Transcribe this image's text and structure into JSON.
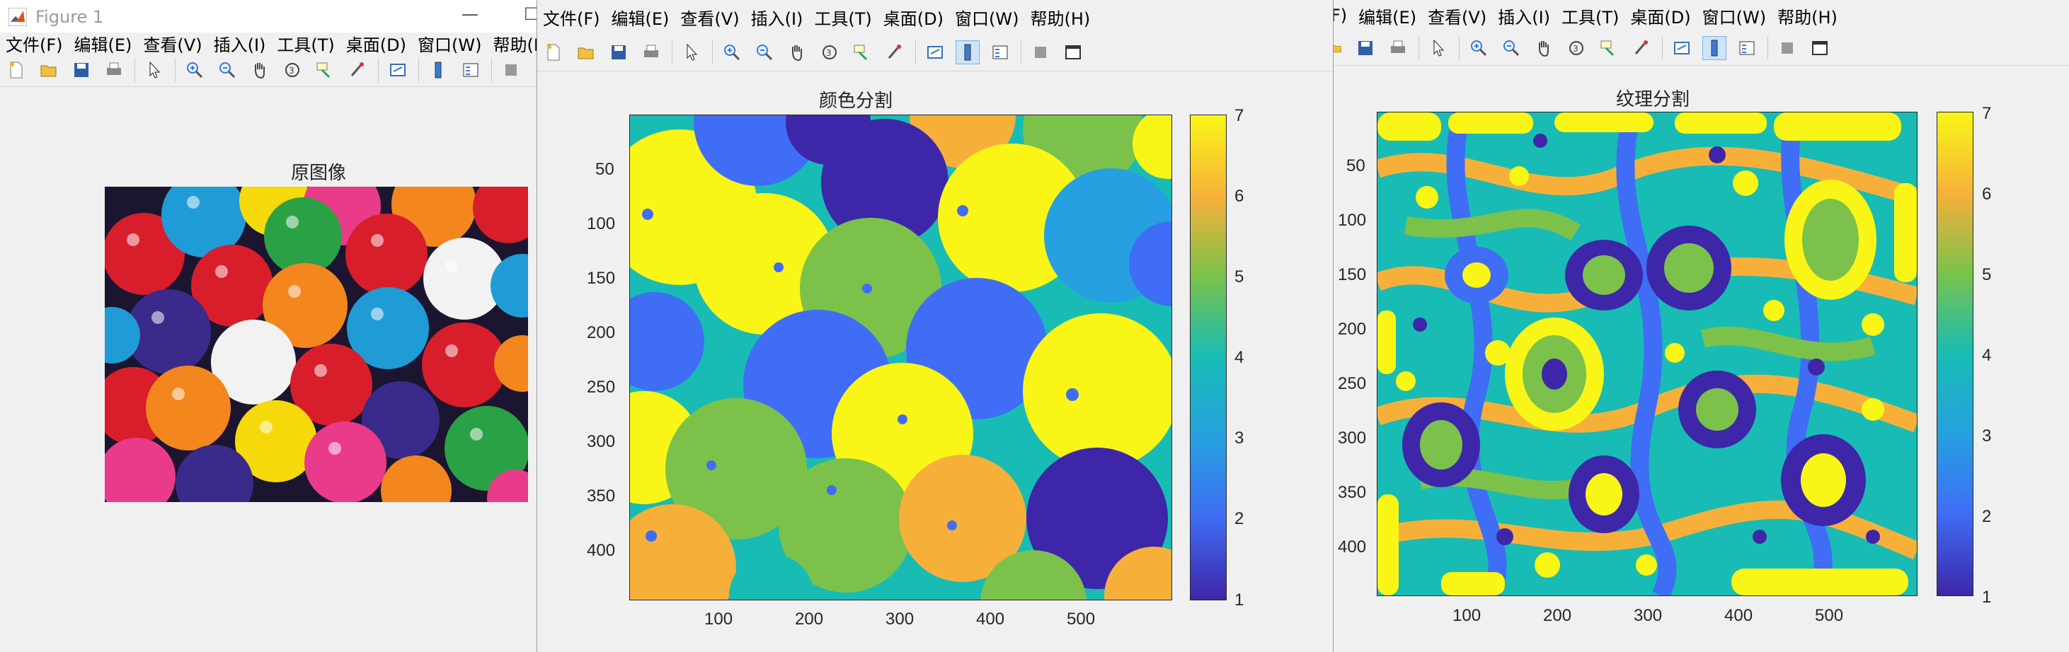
{
  "window1": {
    "title": "Figure 1",
    "menu": [
      "文件(F)",
      "编辑(E)",
      "查看(V)",
      "插入(I)",
      "工具(T)",
      "桌面(D)",
      "窗口(W)",
      "帮助(H)"
    ],
    "axes_title": "原图像"
  },
  "window2": {
    "menu": [
      "文件(F)",
      "编辑(E)",
      "查看(V)",
      "插入(I)",
      "工具(T)",
      "桌面(D)",
      "窗口(W)",
      "帮助(H)"
    ],
    "axes_title": "颜色分割",
    "yticks": [
      "50",
      "100",
      "150",
      "200",
      "250",
      "300",
      "350",
      "400"
    ],
    "xticks": [
      "100",
      "200",
      "300",
      "400",
      "500"
    ],
    "colorbar_ticks": [
      "1",
      "2",
      "3",
      "4",
      "5",
      "6",
      "7"
    ]
  },
  "window3": {
    "menu": [
      "F)",
      "编辑(E)",
      "查看(V)",
      "插入(I)",
      "工具(T)",
      "桌面(D)",
      "窗口(W)",
      "帮助(H)"
    ],
    "axes_title": "纹理分割",
    "yticks": [
      "50",
      "100",
      "150",
      "200",
      "250",
      "300",
      "350",
      "400"
    ],
    "xticks": [
      "100",
      "200",
      "300",
      "400",
      "500"
    ],
    "colorbar_ticks": [
      "1",
      "2",
      "3",
      "4",
      "5",
      "6",
      "7"
    ]
  },
  "colormap": [
    "#3e26a8",
    "#3f6df5",
    "#26a0e0",
    "#18bcb5",
    "#7cc24a",
    "#f6b03a",
    "#f9f617"
  ],
  "icons": [
    "new-file-icon",
    "open-file-icon",
    "save-icon",
    "print-icon",
    "pointer-icon",
    "zoom-in-icon",
    "zoom-out-icon",
    "pan-icon",
    "rotate-3d-icon",
    "data-cursor-icon",
    "brush-icon",
    "link-icon",
    "colorbar-icon",
    "legend-icon",
    "hide-plot-tools-icon",
    "show-plot-tools-icon"
  ]
}
